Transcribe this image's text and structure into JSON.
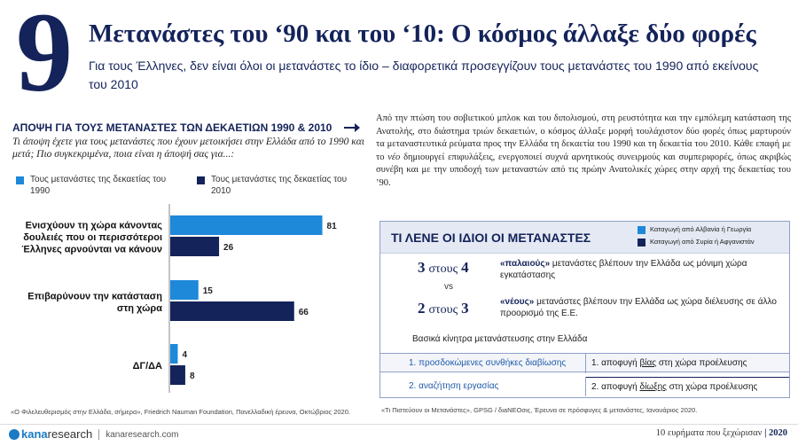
{
  "header": {
    "number": "9",
    "title": "Μετανάστες του ‘90 και του ‘10: Ο κόσμος άλλαξε δύο φορές",
    "subtitle": "Για τους Έλληνες, δεν είναι όλοι οι μετανάστες το ίδιο – διαφορετικά προσεγγίζουν τους μετανάστες του 1990 από εκείνους του 2010"
  },
  "chart_data": {
    "type": "bar",
    "orientation": "horizontal",
    "title": "ΑΠΟΨΗ ΓΙΑ ΤΟΥΣ ΜΕΤΑΝΑΣΤΕΣ ΤΩΝ ΔΕΚΑΕΤΙΩΝ 1990 & 2010",
    "subtitle": "Τι άποψη έχετε για τους μετανάστες που έχουν μετοικήσει στην Ελλάδα από το 1990 και μετά; Πιο συγκεκριμένα, ποια είναι η άποψή σας για...:",
    "categories": [
      [
        "Ενισχύουν τη χώρα κάνοντας",
        "δουλειές που οι περισσότεροι",
        "Έλληνες αρνούνται να κάνουν"
      ],
      [
        "Επιβαρύνουν την κατάσταση",
        "στη χώρα"
      ],
      [
        "ΔΓ/ΔΑ"
      ]
    ],
    "series": [
      {
        "name": "Τους μετανάστες της δεκαετίας του 1990",
        "color": "#1e88d9",
        "values": [
          81,
          15,
          4
        ]
      },
      {
        "name": "Τους μετανάστες της δεκαετίας του 2010",
        "color": "#14235a",
        "values": [
          26,
          66,
          8
        ]
      }
    ],
    "xlim": [
      0,
      85
    ],
    "grid": false,
    "legend": "top",
    "source": "«Ο Φιλελευθερισμός στην Ελλάδα, σήμερα», Friedrich Nauman Foundation, Πανελλαδική έρευνα, Οκτώβριος 2020."
  },
  "body_text": {
    "p1": "Από την πτώση του σοβιετικού μπλοκ και του διπολισμού, στη ρευστότητα και την εμπόλεμη κατάσταση της Ανατολής, στο διάστημα τριών δεκαετιών, ο κόσμος άλλαξε μορφή τουλάχιστον δύο φορές όπως μαρτυρούν τα μεταναστευτικά ρεύματα προς την Ελλάδα τη δεκαετία του 1990 και τη δεκαετία του 2010. Κάθε επαφή με το ",
    "p1_em": "νέο",
    "p1_end": " δημιουργεί επιφυλάξεις, ενεργοποιεί συχνά αρνητικούς συνειρμούς και συμπεριφορές, όπως ακριβώς συνέβη και με την υποδοχή των μεταναστών από τις πρώην Ανατολικές χώρες στην αρχή της δεκαετίας του ’90."
  },
  "box": {
    "title": "ΤΙ ΛΕΝΕ ΟΙ ΙΔΙΟΙ ΟΙ ΜΕΤΑΝΑΣΤΕΣ",
    "legend": [
      {
        "label": "Καταγωγή από Αλβανία ή Γεωργία",
        "color": "#1e88d9"
      },
      {
        "label": "Καταγωγή από Συρία ή Αφγανιστάν",
        "color": "#14235a"
      }
    ],
    "stat1": {
      "num": "3",
      "word": "στους",
      "den": "4",
      "term": "«παλαιούς»",
      "text": " μετανάστες βλέπουν την Ελλάδα ως μόνιμη χώρα εγκατάστασης"
    },
    "vs": "vs",
    "stat2": {
      "num": "2",
      "word": "στους",
      "den": "3",
      "term": "«νέους»",
      "text": " μετανάστες βλέπουν την Ελλάδα ως χώρα διέλευσης σε άλλο προορισμό της Ε.Ε."
    },
    "motives_title": "Βασικά κίνητρα μετανάστευσης στην Ελλάδα",
    "motives": [
      {
        "left": "1. προσδοκώμενες συνθήκες διαβίωσης",
        "right_pre": "1. αποφυγή ",
        "right_u": "βίας",
        "right_post": " στη χώρα προέλευσης"
      },
      {
        "left": "2. αναζήτηση εργασίας",
        "right_pre": "2. αποφυγή ",
        "right_u": "δίωξης",
        "right_post": " στη χώρα προέλευσης"
      }
    ],
    "source": "«Τι Πιστεύουν οι Μετανάστες», GPSG / διaNEOσις, Έρευνα σε πρόσφυγες & μετανάστες, Ιανουάριος 2020."
  },
  "footer": {
    "logo_kana": "kana",
    "logo_research": "research",
    "url": "kanaresearch.com",
    "right_text": "10 ευρήματα που ξεχώρισαν",
    "sep": "|",
    "year": "2020"
  }
}
